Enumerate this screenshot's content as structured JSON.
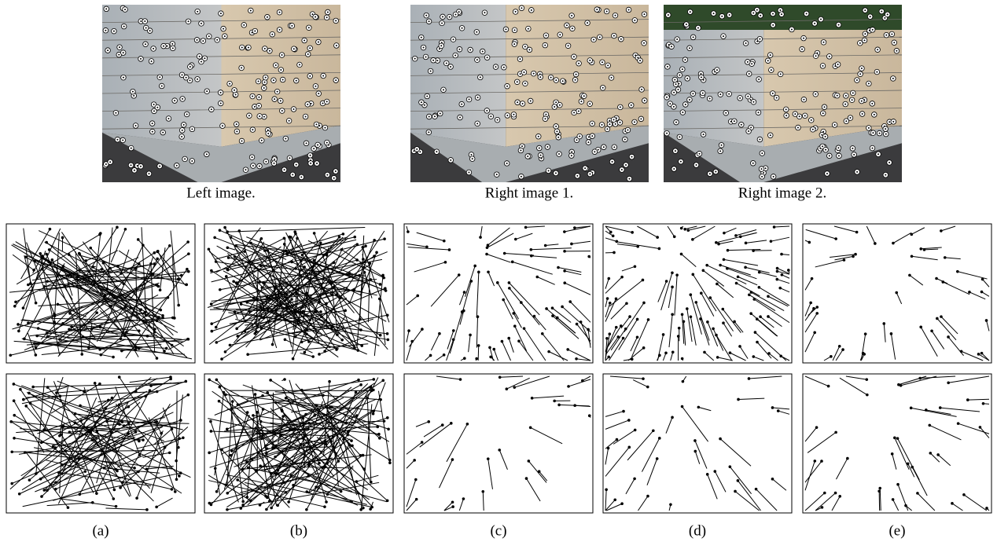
{
  "images": [
    {
      "caption": "Left image."
    },
    {
      "caption": "Right image 1."
    },
    {
      "caption": "Right image 2."
    }
  ],
  "panels": [
    {
      "label": "(a)"
    },
    {
      "label": "(b)"
    },
    {
      "label": "(c)"
    },
    {
      "label": "(d)"
    },
    {
      "label": "(e)"
    }
  ]
}
